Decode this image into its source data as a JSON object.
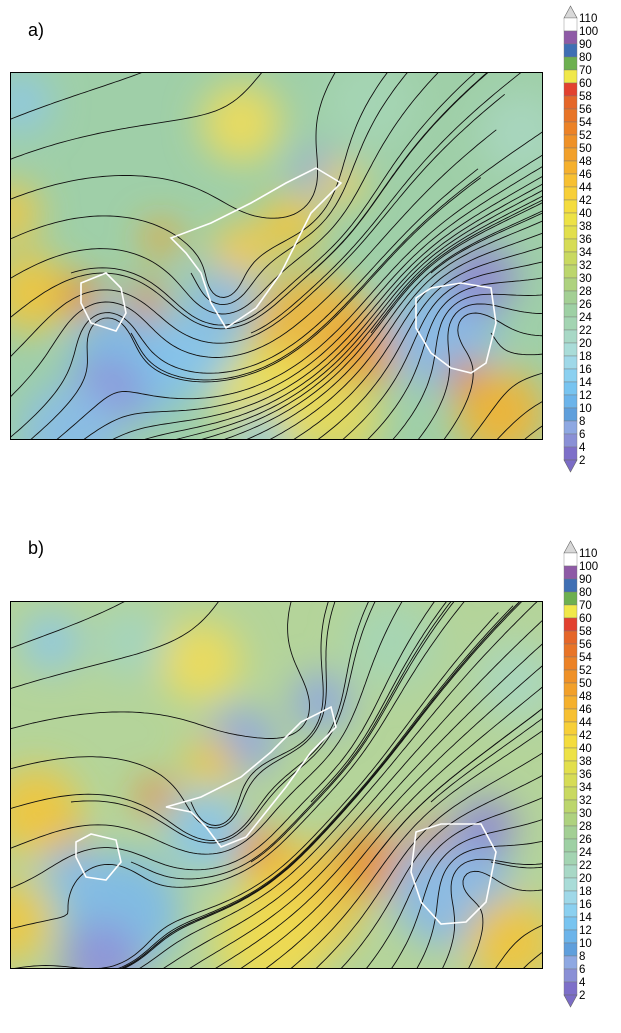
{
  "panels": [
    {
      "label": "a)"
    },
    {
      "label": "b)"
    }
  ],
  "colorbar": {
    "labels": [
      "2",
      "4",
      "6",
      "8",
      "10",
      "12",
      "14",
      "16",
      "18",
      "20",
      "22",
      "24",
      "26",
      "28",
      "30",
      "32",
      "34",
      "36",
      "38",
      "40",
      "42",
      "44",
      "46",
      "48",
      "50",
      "52",
      "54",
      "56",
      "58",
      "60",
      "70",
      "80",
      "90",
      "100",
      "110"
    ],
    "colors": [
      "#7d6fc9",
      "#8a90d6",
      "#8ea8e2",
      "#5f9fdc",
      "#6cb4ea",
      "#78c4f0",
      "#8bd0f0",
      "#9fd8e8",
      "#a9dcd8",
      "#a8d8c6",
      "#a3d4b2",
      "#9ed0a4",
      "#a3cf94",
      "#aed27f",
      "#bcd66d",
      "#c9d960",
      "#d6dc56",
      "#e2df4c",
      "#ede246",
      "#f4dc3e",
      "#f7cf38",
      "#f7c032",
      "#f5b02d",
      "#f2a02a",
      "#ef9127",
      "#ec8226",
      "#e87427",
      "#e56629",
      "#e2412f",
      "#f0e84a",
      "#6db050",
      "#3f6fb4",
      "#8e5aa6",
      "#ffffff"
    ]
  },
  "chart_data": [
    {
      "type": "heatmap",
      "title": "",
      "panel": "a)",
      "overlay": "streamlines with white contour outlines",
      "colorbar_ticks": [
        2,
        4,
        6,
        8,
        10,
        12,
        14,
        16,
        18,
        20,
        22,
        24,
        26,
        28,
        30,
        32,
        34,
        36,
        38,
        40,
        42,
        44,
        46,
        48,
        50,
        52,
        54,
        56,
        58,
        60,
        70,
        80,
        90,
        100,
        110
      ]
    },
    {
      "type": "heatmap",
      "title": "",
      "panel": "b)",
      "overlay": "streamlines with white contour outlines",
      "colorbar_ticks": [
        2,
        4,
        6,
        8,
        10,
        12,
        14,
        16,
        18,
        20,
        22,
        24,
        26,
        28,
        30,
        32,
        34,
        36,
        38,
        40,
        42,
        44,
        46,
        48,
        50,
        52,
        54,
        56,
        58,
        60,
        70,
        80,
        90,
        100,
        110
      ]
    }
  ]
}
